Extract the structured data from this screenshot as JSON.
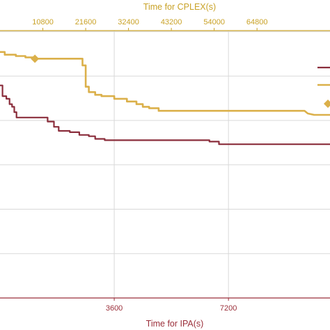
{
  "chart_data": {
    "type": "line",
    "x2label": "Time for CPLEX(s)",
    "xlabel": "Time for IPA(s)",
    "x2_ticks": [
      "10800",
      "21600",
      "32400",
      "43200",
      "54000",
      "64800"
    ],
    "x_ticks": [
      "3600",
      "7200"
    ],
    "x_range": [
      0,
      10400
    ],
    "x2_range": [
      0,
      83200
    ],
    "y_range": [
      0,
      100
    ],
    "grid": true,
    "colors": {
      "ipa": "#8b2e3c",
      "cplex": "#dbb04a",
      "grid": "#d9d9d9",
      "top_axis": "#c9a227",
      "bottom_axis": "#9b2f3a"
    },
    "series": [
      {
        "key": "ipa",
        "color": "#8b2e3c",
        "points": [
          [
            0,
            79.5
          ],
          [
            80,
            79.5
          ],
          [
            80,
            75.5
          ],
          [
            200,
            75.5
          ],
          [
            200,
            74.5
          ],
          [
            300,
            74.5
          ],
          [
            300,
            72.5
          ],
          [
            380,
            72.5
          ],
          [
            380,
            71.5
          ],
          [
            450,
            71.5
          ],
          [
            450,
            69.5
          ],
          [
            520,
            69.5
          ],
          [
            520,
            67.5
          ],
          [
            1250,
            67.5
          ],
          [
            1500,
            67.5
          ],
          [
            1500,
            66
          ],
          [
            1700,
            66
          ],
          [
            1700,
            64
          ],
          [
            1850,
            64
          ],
          [
            1850,
            62.5
          ],
          [
            2200,
            62.5
          ],
          [
            2200,
            62
          ],
          [
            2500,
            62
          ],
          [
            2500,
            61
          ],
          [
            2800,
            61
          ],
          [
            2800,
            60.5
          ],
          [
            3000,
            60.5
          ],
          [
            3000,
            59.5
          ],
          [
            3300,
            59.5
          ],
          [
            3300,
            59
          ],
          [
            4800,
            59
          ],
          [
            6600,
            59
          ],
          [
            6600,
            58.5
          ],
          [
            6900,
            58.5
          ],
          [
            6900,
            57.5
          ],
          [
            10400,
            57.5
          ]
        ]
      },
      {
        "key": "cplex",
        "color": "#dbb04a",
        "points": [
          [
            0,
            92
          ],
          [
            150,
            92
          ],
          [
            150,
            91
          ],
          [
            500,
            91
          ],
          [
            500,
            90.5
          ],
          [
            800,
            90.5
          ],
          [
            800,
            90
          ],
          [
            1100,
            90
          ],
          [
            1100,
            89.5
          ],
          [
            2600,
            89.5
          ],
          [
            2600,
            87
          ],
          [
            2700,
            87
          ],
          [
            2700,
            79
          ],
          [
            2800,
            79
          ],
          [
            2800,
            77
          ],
          [
            3000,
            77
          ],
          [
            3000,
            76
          ],
          [
            3200,
            76
          ],
          [
            3200,
            75.5
          ],
          [
            3600,
            75.5
          ],
          [
            3600,
            74.5
          ],
          [
            4000,
            74.5
          ],
          [
            4000,
            73.5
          ],
          [
            4300,
            73.5
          ],
          [
            4300,
            72.5
          ],
          [
            4500,
            72.5
          ],
          [
            4500,
            71.5
          ],
          [
            4700,
            71.5
          ],
          [
            4700,
            71
          ],
          [
            5000,
            71
          ],
          [
            5000,
            70
          ],
          [
            9600,
            70
          ],
          [
            9700,
            69
          ],
          [
            9900,
            68.5
          ],
          [
            10400,
            68.5
          ]
        ]
      }
    ],
    "markers": [
      {
        "series": "cplex",
        "x": 1100,
        "y": 89.5
      }
    ]
  }
}
